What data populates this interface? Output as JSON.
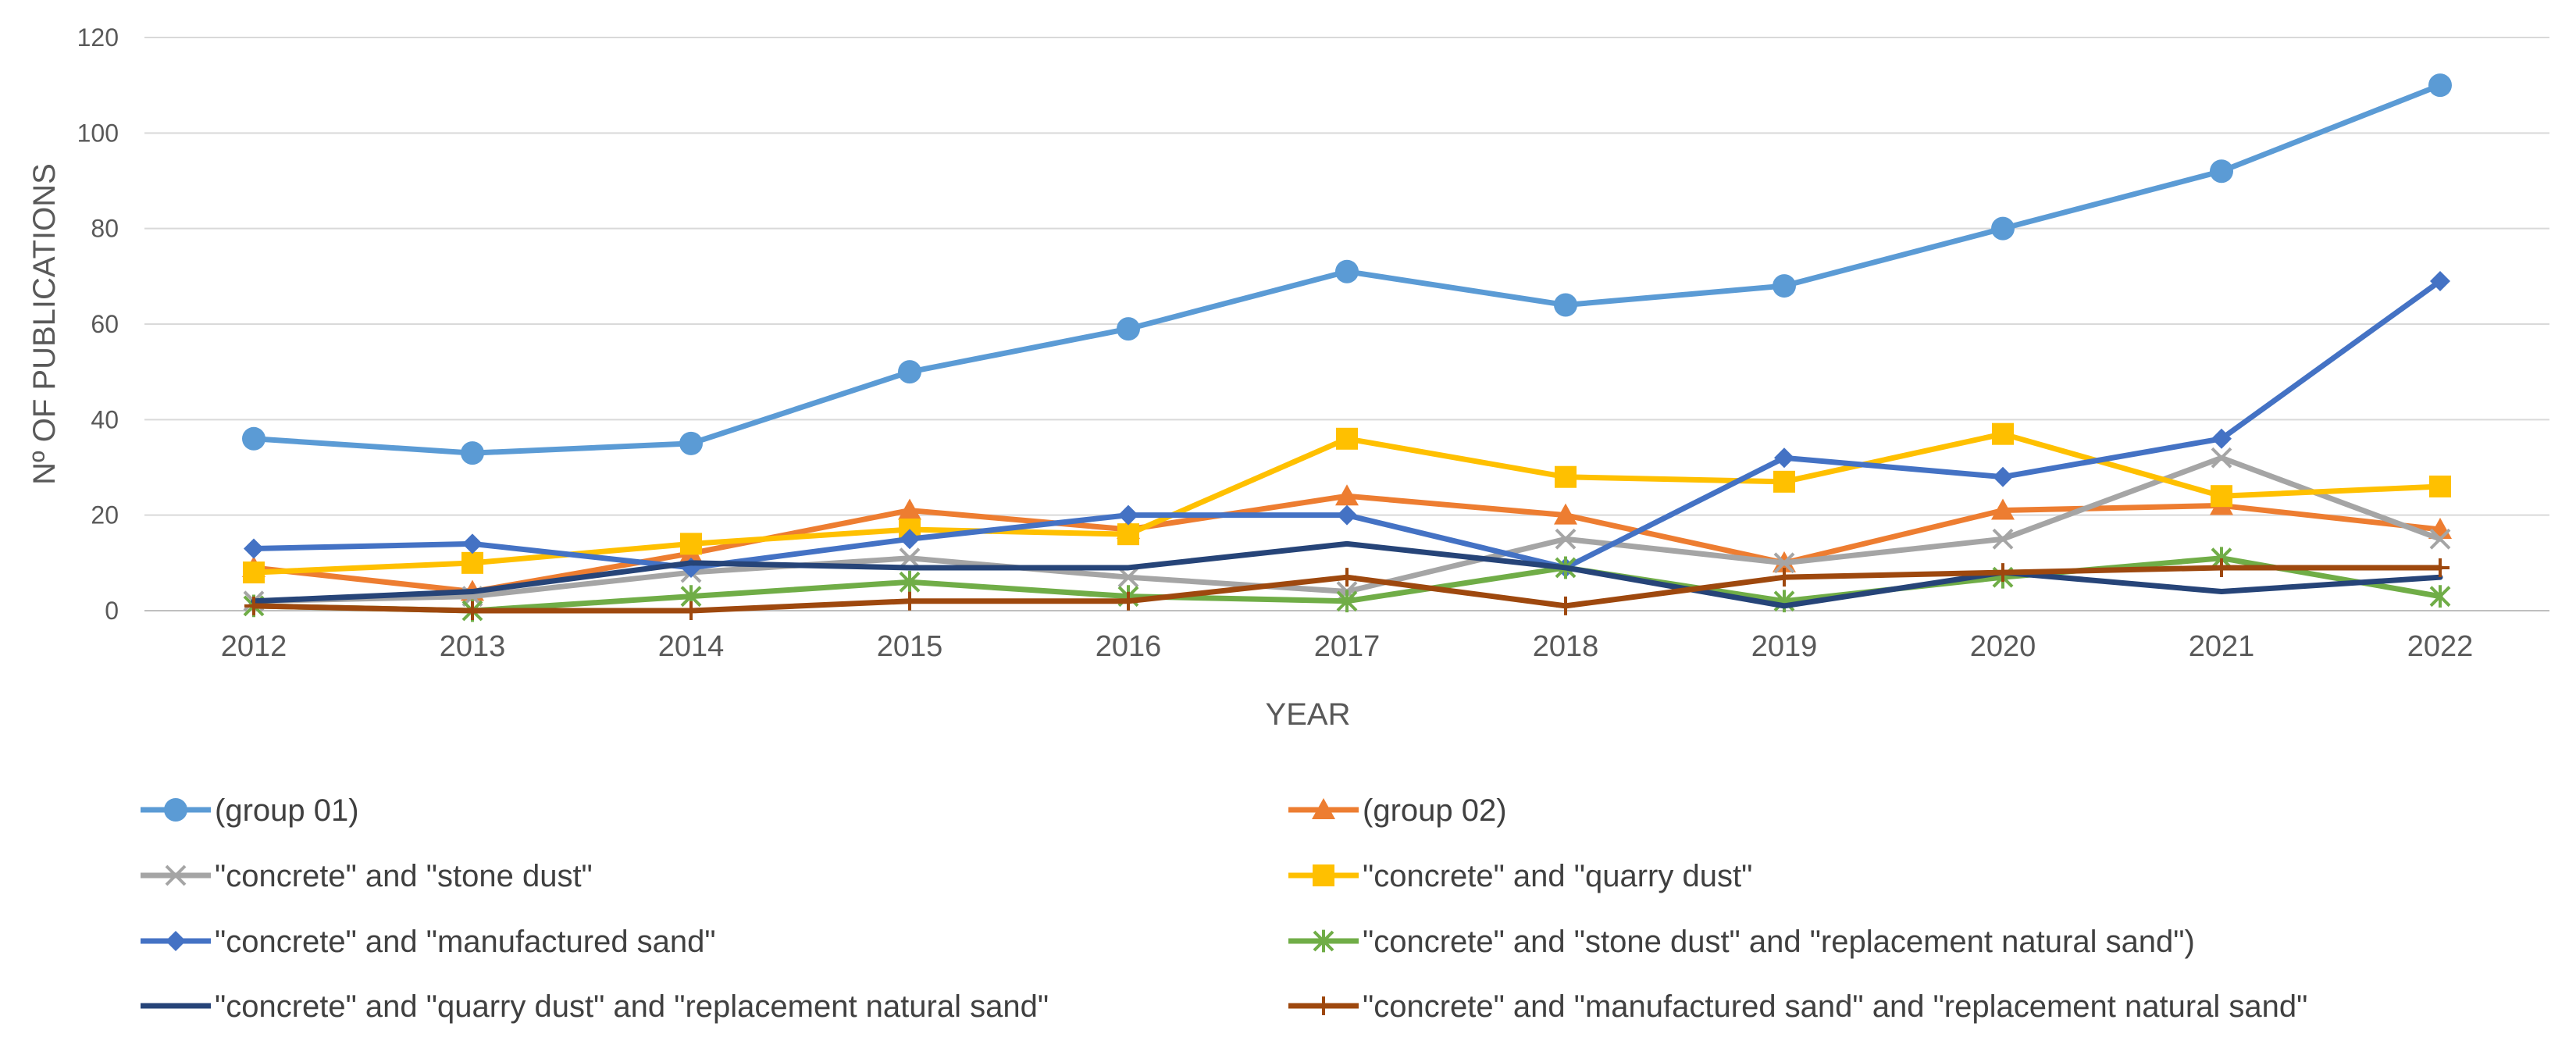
{
  "chart_data": {
    "type": "line",
    "xlabel": "YEAR",
    "ylabel": "Nº OF PUBLICATIONS",
    "ylim": [
      0,
      120
    ],
    "yticks": [
      0,
      20,
      40,
      60,
      80,
      100,
      120
    ],
    "grid": true,
    "legend_position": "bottom",
    "categories": [
      "2012",
      "2013",
      "2014",
      "2015",
      "2016",
      "2017",
      "2018",
      "2019",
      "2020",
      "2021",
      "2022"
    ],
    "series": [
      {
        "name": "(group 01)",
        "color": "#5B9BD5",
        "marker": "circle",
        "values": [
          36,
          33,
          35,
          50,
          59,
          71,
          64,
          68,
          80,
          92,
          110
        ]
      },
      {
        "name": "(group 02)",
        "color": "#ED7D31",
        "marker": "triangle",
        "values": [
          9,
          4,
          12,
          21,
          17,
          24,
          20,
          10,
          21,
          22,
          17
        ]
      },
      {
        "name": "\"concrete\" and \"stone dust\"",
        "color": "#A5A5A5",
        "marker": "x",
        "values": [
          2,
          3,
          8,
          11,
          7,
          4,
          15,
          10,
          15,
          32,
          15
        ]
      },
      {
        "name": "\"concrete\" and \"quarry dust\"",
        "color": "#FFC000",
        "marker": "square",
        "values": [
          8,
          10,
          14,
          17,
          16,
          36,
          28,
          27,
          37,
          24,
          26
        ]
      },
      {
        "name": "\"concrete\" and \"manufactured sand\"",
        "color": "#4472C4",
        "marker": "diamond",
        "values": [
          13,
          14,
          9,
          15,
          20,
          20,
          9,
          32,
          28,
          36,
          69
        ]
      },
      {
        "name": "\"concrete\" and \"stone dust\" and \"replacement natural sand\")",
        "color": "#70AD47",
        "marker": "star",
        "values": [
          1,
          0,
          3,
          6,
          3,
          2,
          9,
          2,
          7,
          11,
          3
        ]
      },
      {
        "name": "\"concrete\" and \"quarry dust\" and \"replacement natural sand\"",
        "color": "#264478",
        "marker": "none",
        "values": [
          2,
          4,
          10,
          9,
          9,
          14,
          9,
          1,
          8,
          4,
          7
        ]
      },
      {
        "name": "\"concrete\" and \"manufactured sand\" and \"replacement natural sand\"",
        "color": "#9E480E",
        "marker": "plus",
        "values": [
          1,
          0,
          0,
          2,
          2,
          7,
          1,
          7,
          8,
          9,
          9
        ]
      }
    ]
  }
}
